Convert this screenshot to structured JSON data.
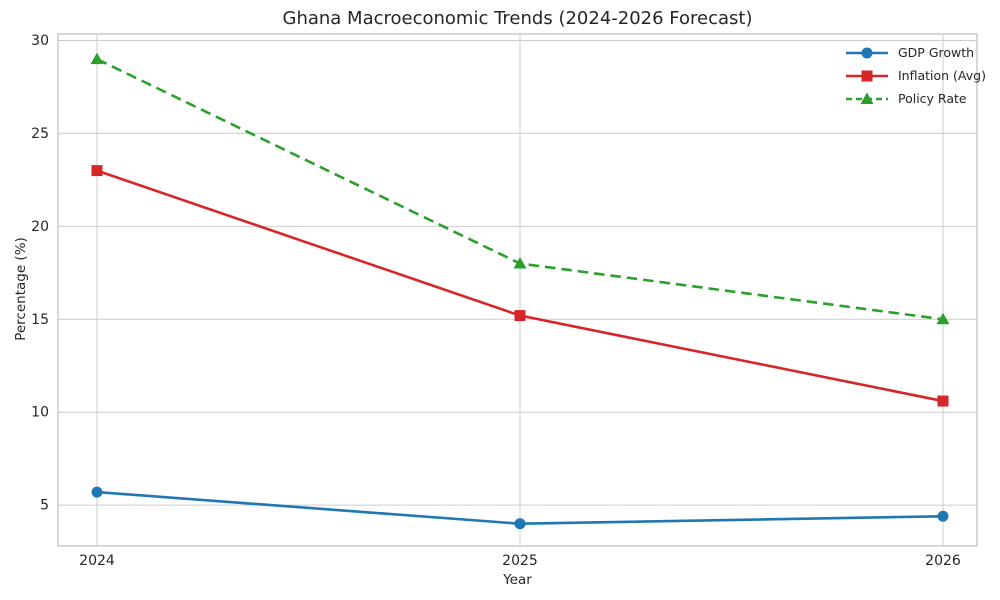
{
  "figure": {
    "background": "#ffffff"
  },
  "chart_data": {
    "type": "line",
    "title": "Ghana Macroeconomic Trends (2024-2026 Forecast)",
    "xlabel": "Year",
    "ylabel": "Percentage (%)",
    "x": [
      "2024",
      "2025",
      "2026"
    ],
    "series": [
      {
        "name": "GDP Growth",
        "values": [
          5.7,
          4.0,
          4.4
        ],
        "color": "#1f77b4",
        "marker": "circle",
        "linestyle": "solid"
      },
      {
        "name": "Inflation (Avg)",
        "values": [
          23.0,
          15.2,
          10.6
        ],
        "color": "#d62728",
        "marker": "square",
        "linestyle": "solid"
      },
      {
        "name": "Policy Rate",
        "values": [
          29.0,
          18.0,
          15.0
        ],
        "color": "#2ca02c",
        "marker": "triangle-up",
        "linestyle": "dashed"
      }
    ],
    "yticks": [
      5,
      10,
      15,
      20,
      25,
      30
    ],
    "ylim": [
      2.8,
      30.35
    ],
    "grid": true,
    "legend_position": "upper right",
    "colors": {
      "grid": "#cccccc",
      "spine": "#bdbdbd",
      "text": "#262626"
    }
  }
}
